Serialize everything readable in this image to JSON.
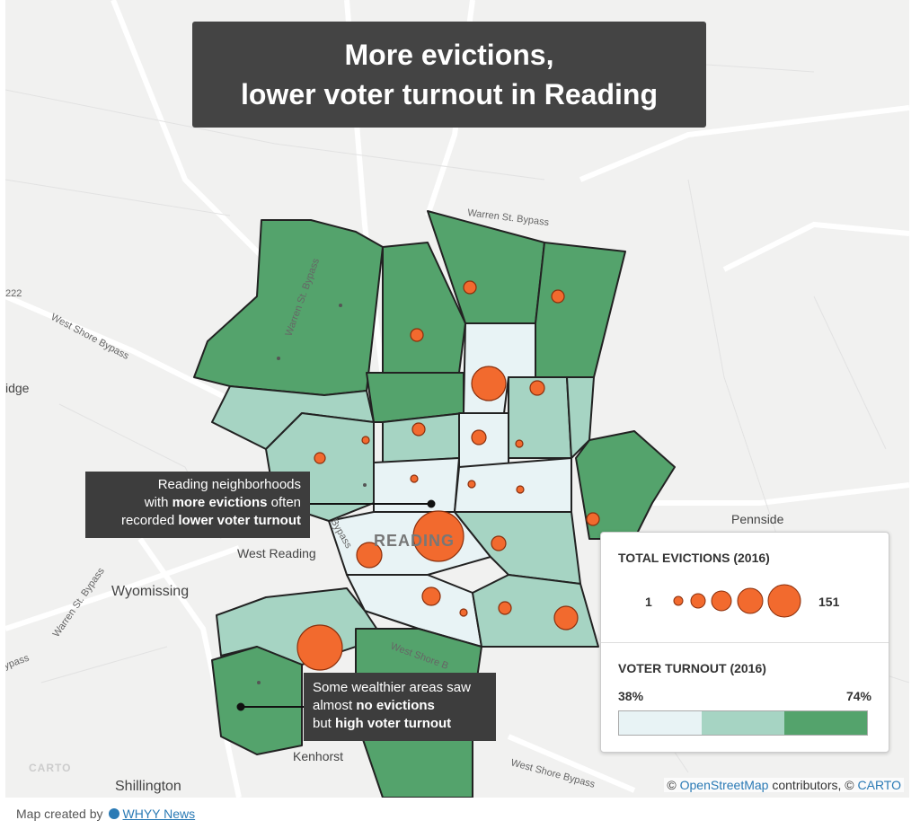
{
  "title": {
    "line1": "More evictions,",
    "line2": "lower voter turnout in Reading"
  },
  "annotations": {
    "evictions_note": {
      "line1": "Reading neighborhoods",
      "line2_pre": "with ",
      "line2_bold": "more evictions",
      "line2_post": " often",
      "line3_pre": "recorded ",
      "line3_bold": "lower voter turnout"
    },
    "wealthy_note": {
      "line1": "Some wealthier areas saw",
      "line2_pre": "almost ",
      "line2_bold": "no evictions",
      "line3_pre": "but ",
      "line3_bold": "high voter turnout"
    }
  },
  "map_labels": {
    "city": "READING",
    "warren_bypass_top": "Warren St. Bypass",
    "warren_bypass_left": "Warren St. Bypass",
    "warren_bypass_sw": "Warren St. Bypass",
    "west_shore_bypass": "West Shore Bypass",
    "west_shore_bypass_2": "West Shore B",
    "west_shore_bypass_bottom": "West Shore Bypass",
    "bypass_left": "ypass",
    "road_222": "222",
    "ridge": "idge",
    "west_reading": "West Reading",
    "wyomissing": "Wyomissing",
    "pennside": "Pennside",
    "kenhorst": "Kenhorst",
    "shillington": "Shillington",
    "carto_logo": "CARTO",
    "bypass_mid": "Bypass"
  },
  "legend": {
    "evictions_title": "TOTAL EVICTIONS (2016)",
    "evictions_min": "1",
    "evictions_max": "151",
    "turnout_title": "VOTER TURNOUT (2016)",
    "turnout_min": "38%",
    "turnout_max": "74%"
  },
  "colors": {
    "turnout_low": "#e8f3f5",
    "turnout_mid": "#a6d4c3",
    "turnout_high": "#54a36c",
    "eviction_dot": "#f26a2e",
    "title_bg": "#444444",
    "annotation_bg": "#3d3d3d"
  },
  "attribution": {
    "prefix": "©",
    "osm": "OpenStreetMap",
    "mid": "contributors, ©",
    "carto": "CARTO"
  },
  "footer": {
    "prefix": "Map created by",
    "org": "WHYY News"
  }
}
